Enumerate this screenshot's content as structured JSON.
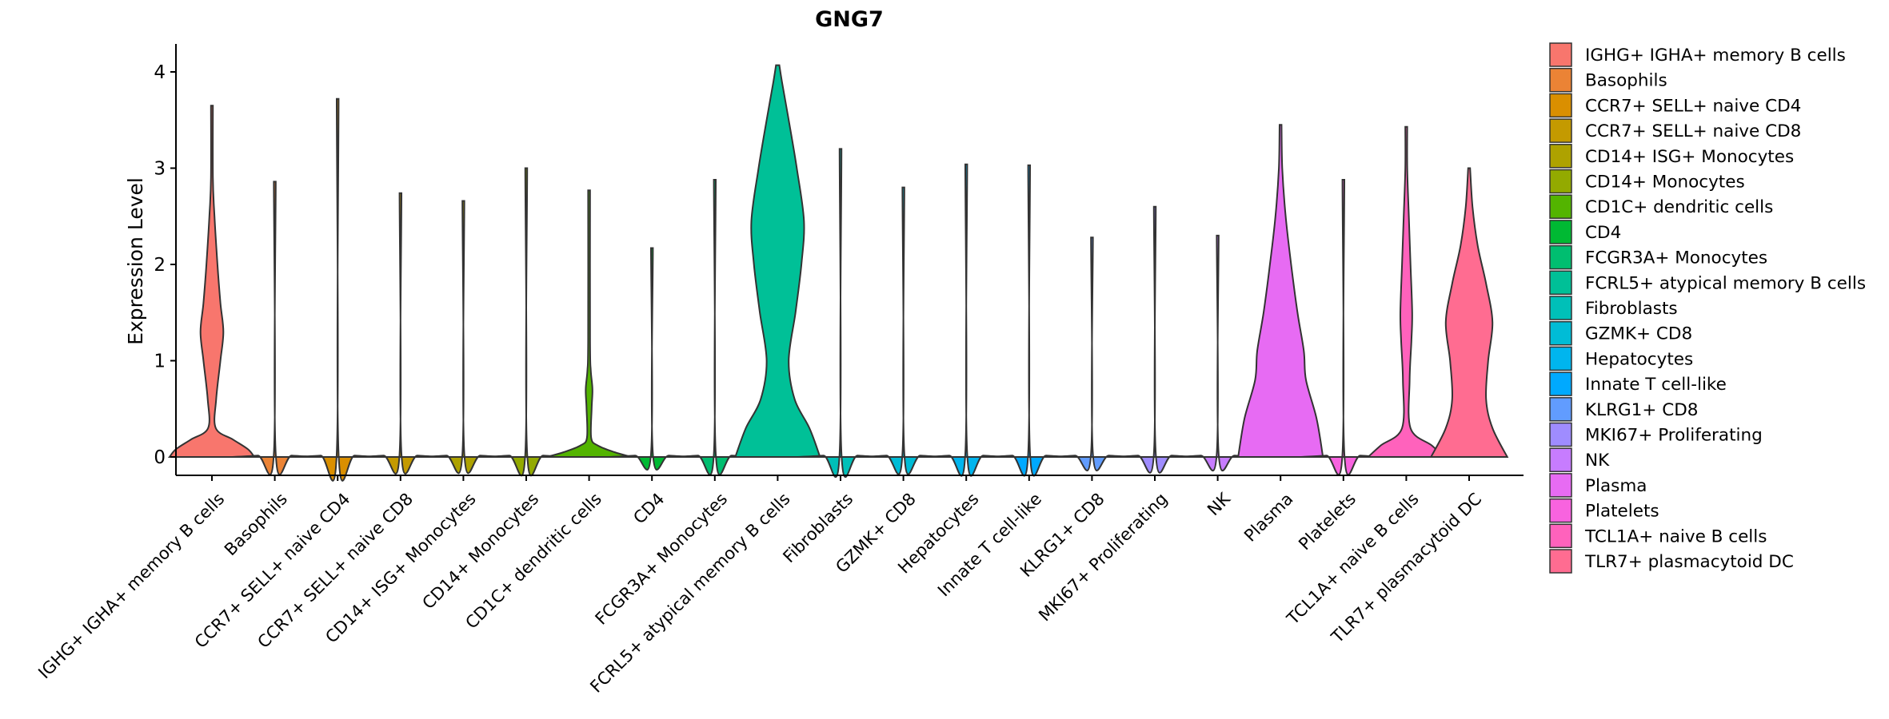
{
  "chart_data": {
    "type": "violin",
    "title": "GNG7",
    "xlabel": "",
    "ylabel": "Expression Level",
    "ylim": [
      -0.2,
      4.3
    ],
    "yticks": [
      0,
      1,
      2,
      3,
      4
    ],
    "grid": false,
    "legend_position": "right",
    "categories": [
      {
        "name": " IGHG+ IGHA+ memory B cells",
        "color": "#F8766D",
        "max": 3.65,
        "profile": [
          [
            0,
            1.0
          ],
          [
            0.08,
            0.85
          ],
          [
            0.18,
            0.5
          ],
          [
            0.3,
            0.09
          ],
          [
            0.6,
            0.1
          ],
          [
            1.0,
            0.2
          ],
          [
            1.3,
            0.27
          ],
          [
            1.6,
            0.2
          ],
          [
            2.0,
            0.13
          ],
          [
            2.5,
            0.06
          ],
          [
            2.9,
            0.02
          ],
          [
            3.65,
            0
          ]
        ]
      },
      {
        "name": "Basophils",
        "color": "#EB8335",
        "max": 2.86,
        "profile": []
      },
      {
        "name": "CCR7+ SELL+ naive CD4",
        "color": "#DA8F00",
        "max": 3.72,
        "profile": []
      },
      {
        "name": "CCR7+ SELL+ naive CD8",
        "color": "#C49A00",
        "max": 2.74,
        "profile": []
      },
      {
        "name": "CD14+ ISG+ Monocytes",
        "color": "#AEA200",
        "max": 2.66,
        "profile": []
      },
      {
        "name": "CD14+ Monocytes",
        "color": "#93AA00",
        "max": 3.0,
        "profile": []
      },
      {
        "name": "CD1C+ dendritic cells",
        "color": "#53B400",
        "max": 2.77,
        "profile": [
          [
            0,
            1.0
          ],
          [
            0.05,
            0.6
          ],
          [
            0.12,
            0.2
          ],
          [
            0.2,
            0.05
          ],
          [
            0.5,
            0.06
          ],
          [
            0.7,
            0.08
          ],
          [
            0.9,
            0.04
          ],
          [
            1.2,
            0.01
          ],
          [
            2.77,
            0
          ]
        ]
      },
      {
        "name": "CD4",
        "color": "#00B933",
        "max": 2.17,
        "profile": []
      },
      {
        "name": "FCGR3A+ Monocytes",
        "color": "#00BE70",
        "max": 2.88,
        "profile": []
      },
      {
        "name": "FCRL5+ atypical memory B cells",
        "color": "#00C097",
        "max": 4.07,
        "profile": [
          [
            0,
            1.0
          ],
          [
            0.3,
            0.75
          ],
          [
            0.6,
            0.4
          ],
          [
            1.0,
            0.26
          ],
          [
            1.5,
            0.42
          ],
          [
            2.0,
            0.56
          ],
          [
            2.45,
            0.62
          ],
          [
            3.0,
            0.45
          ],
          [
            3.5,
            0.26
          ],
          [
            3.9,
            0.1
          ],
          [
            4.07,
            0.04
          ]
        ]
      },
      {
        "name": "Fibroblasts",
        "color": "#00C0B8",
        "max": 3.2,
        "profile": []
      },
      {
        "name": "GZMK+ CD8",
        "color": "#00BCD6",
        "max": 2.8,
        "profile": []
      },
      {
        "name": "Hepatocytes",
        "color": "#00B5EE",
        "max": 3.04,
        "profile": []
      },
      {
        "name": "Innate T cell-like",
        "color": "#00A9FF",
        "max": 3.03,
        "profile": []
      },
      {
        "name": "KLRG1+ CD8",
        "color": "#619CFF",
        "max": 2.28,
        "profile": []
      },
      {
        "name": "MKI67+ Proliferating",
        "color": "#9F8CFF",
        "max": 2.6,
        "profile": []
      },
      {
        "name": "NK",
        "color": "#C77CFF",
        "max": 2.3,
        "profile": []
      },
      {
        "name": "Plasma",
        "color": "#E76BF3",
        "max": 3.45,
        "profile": [
          [
            0,
            1.0
          ],
          [
            0.4,
            0.85
          ],
          [
            0.8,
            0.6
          ],
          [
            1.1,
            0.55
          ],
          [
            1.5,
            0.4
          ],
          [
            2.0,
            0.25
          ],
          [
            2.5,
            0.12
          ],
          [
            3.0,
            0.04
          ],
          [
            3.45,
            0
          ]
        ]
      },
      {
        "name": "Platelets",
        "color": "#F863DF",
        "max": 2.88,
        "profile": []
      },
      {
        "name": "TCL1A+ naive B cells",
        "color": "#FF62BC",
        "max": 3.43,
        "profile": [
          [
            0,
            0.9
          ],
          [
            0.12,
            0.6
          ],
          [
            0.3,
            0.1
          ],
          [
            0.8,
            0.08
          ],
          [
            1.2,
            0.12
          ],
          [
            1.5,
            0.14
          ],
          [
            2.0,
            0.1
          ],
          [
            2.5,
            0.06
          ],
          [
            3.0,
            0.02
          ],
          [
            3.43,
            0
          ]
        ]
      },
      {
        "name": "TLR7+ plasmacytoid DC",
        "color": "#FF6C91",
        "max": 3.0,
        "profile": [
          [
            0,
            0.9
          ],
          [
            0.3,
            0.55
          ],
          [
            0.6,
            0.4
          ],
          [
            1.0,
            0.45
          ],
          [
            1.4,
            0.55
          ],
          [
            1.8,
            0.4
          ],
          [
            2.2,
            0.2
          ],
          [
            2.6,
            0.08
          ],
          [
            3.0,
            0
          ]
        ]
      }
    ]
  }
}
